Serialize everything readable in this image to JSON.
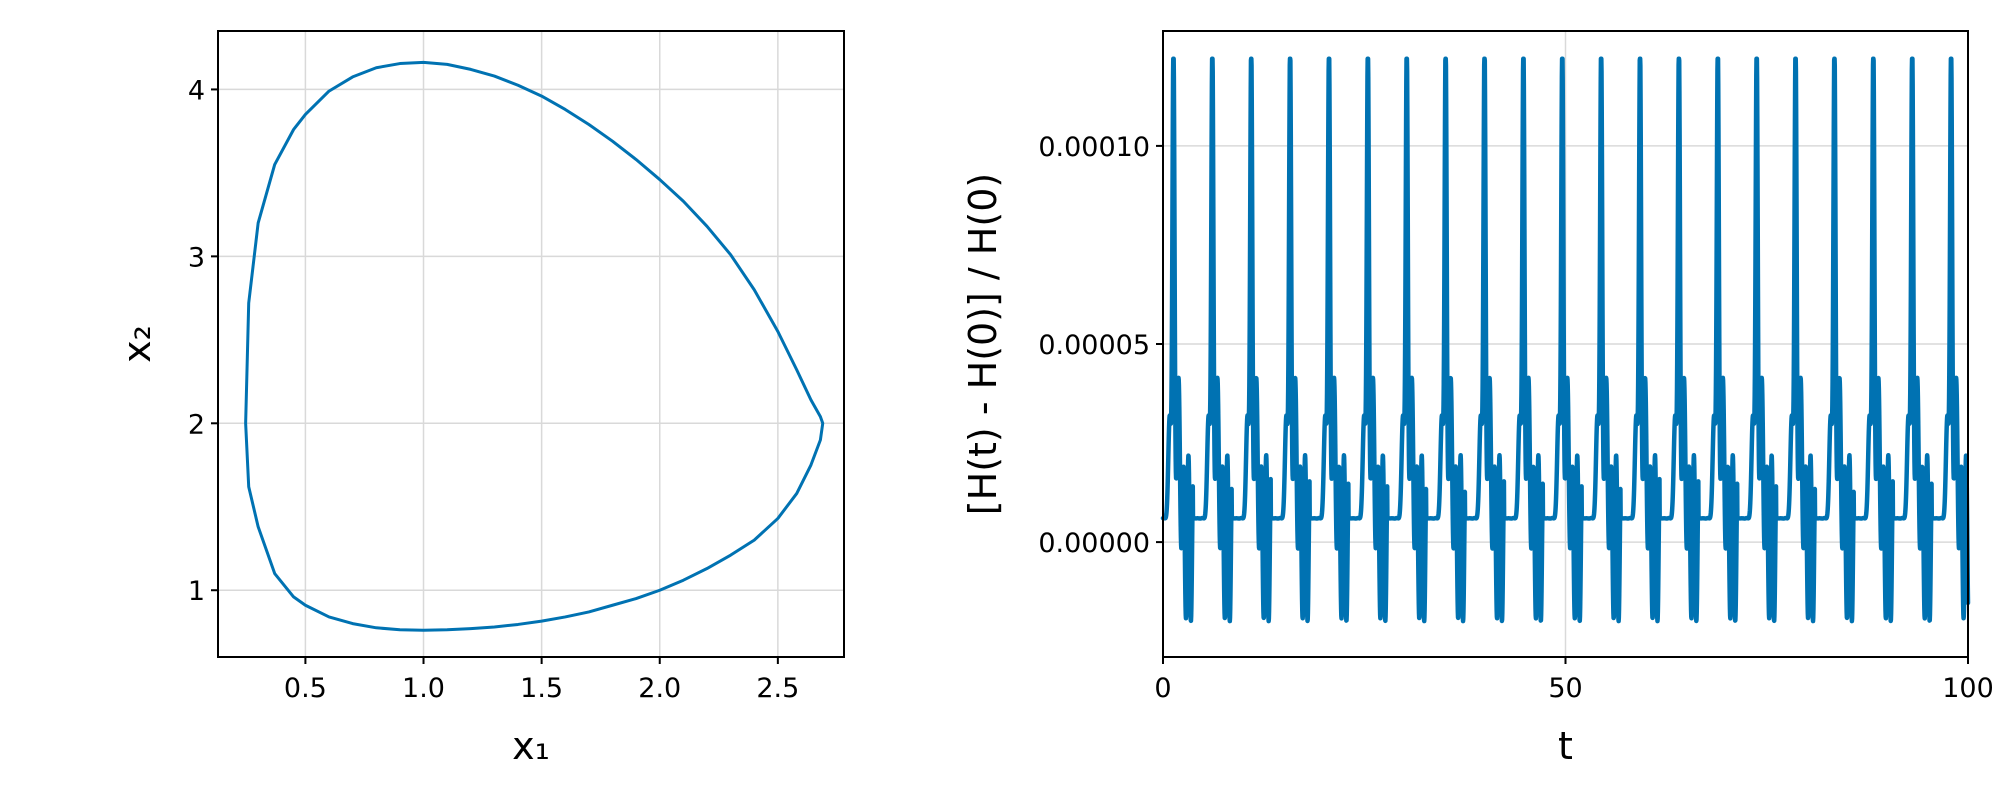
{
  "chart_data": [
    {
      "type": "line",
      "title": "",
      "xlabel": "x₁",
      "ylabel": "x₂",
      "xlim": [
        0.13,
        2.78
      ],
      "ylim": [
        0.6,
        4.35
      ],
      "xticks": [
        0.5,
        1.0,
        1.5,
        2.0,
        2.5
      ],
      "xtick_labels": [
        "0.5",
        "1.0",
        "1.5",
        "2.0",
        "2.5"
      ],
      "yticks": [
        1,
        2,
        3,
        4
      ],
      "ytick_labels": [
        "1",
        "2",
        "3",
        "4"
      ],
      "grid": true,
      "legend": "none",
      "color": "#0072b2",
      "series": [
        {
          "x": [
            0.247,
            0.26,
            0.3,
            0.37,
            0.45,
            0.5,
            0.6,
            0.7,
            0.8,
            0.9,
            1.0,
            1.1,
            1.2,
            1.3,
            1.4,
            1.5,
            1.6,
            1.7,
            1.8,
            1.9,
            2.0,
            2.1,
            2.2,
            2.3,
            2.4,
            2.5,
            2.58,
            2.64,
            2.68,
            2.69,
            2.68,
            2.64,
            2.58,
            2.5,
            2.4,
            2.3,
            2.2,
            2.1,
            2.0,
            1.9,
            1.8,
            1.7,
            1.6,
            1.5,
            1.4,
            1.3,
            1.2,
            1.1,
            1.0,
            0.9,
            0.8,
            0.7,
            0.6,
            0.5,
            0.45,
            0.37,
            0.3,
            0.26,
            0.247
          ],
          "y": [
            2.0,
            2.72,
            3.2,
            3.55,
            3.76,
            3.85,
            3.99,
            4.075,
            4.13,
            4.155,
            4.162,
            4.15,
            4.12,
            4.08,
            4.025,
            3.96,
            3.88,
            3.79,
            3.69,
            3.58,
            3.46,
            3.33,
            3.18,
            3.01,
            2.8,
            2.55,
            2.32,
            2.14,
            2.04,
            2.0,
            1.9,
            1.75,
            1.58,
            1.43,
            1.3,
            1.21,
            1.13,
            1.06,
            1.0,
            0.95,
            0.91,
            0.87,
            0.84,
            0.815,
            0.795,
            0.78,
            0.77,
            0.763,
            0.76,
            0.763,
            0.775,
            0.8,
            0.84,
            0.91,
            0.96,
            1.1,
            1.38,
            1.62,
            2.0
          ]
        }
      ]
    },
    {
      "type": "line",
      "title": "",
      "xlabel": "t",
      "ylabel": "[H(t) - H(0)] / H(0)",
      "xlim": [
        0,
        100
      ],
      "ylim": [
        -2.9e-05,
        0.000129
      ],
      "xticks": [
        0,
        50,
        100
      ],
      "xtick_labels": [
        "0",
        "50",
        "100"
      ],
      "yticks": [
        0,
        5e-05,
        0.0001
      ],
      "ytick_labels": [
        "0.00000",
        "0.00005",
        "0.00010"
      ],
      "grid": true,
      "legend": "none",
      "color": "#0072b2",
      "series": [
        {
          "period": 4.83,
          "first_spike_t": 1.3,
          "spike_peak": 0.000122,
          "secondary_peak": 3.5e-05,
          "minimum": -2.1e-05,
          "baseline": 6e-06
        }
      ]
    }
  ]
}
